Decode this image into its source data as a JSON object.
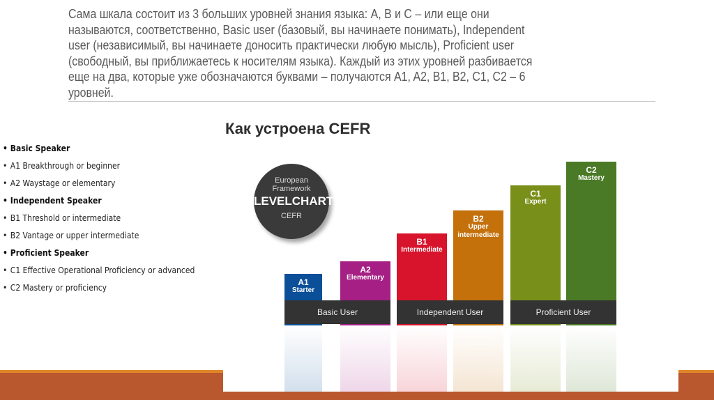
{
  "paragraph": {
    "lines": [
      "Сама шкала состоит из 3 больших уровней знания языка: А, В и С – или еще они",
      "называются, соответственно, Basic user (базовый, вы начинаете понимать), Independent",
      "user (независимый, вы начинаете доносить практически любую мысль), Proficient user",
      "(свободный, вы приближаетесь к носителям языка). Каждый из этих уровней разбивается",
      "еще на два, которые уже обозначаются буквами – получаются A1, A2, B1, B2, C1, C2 – 6",
      "уровней."
    ]
  },
  "list": [
    {
      "text": "Basic Speaker",
      "bold": true
    },
    {
      "text": "A1 Breakthrough or beginner"
    },
    {
      "text": "A2 Waystage or elementary"
    },
    {
      "text": "Independent Speaker",
      "bold": true
    },
    {
      "text": "B1 Threshold or intermediate"
    },
    {
      "text": "B2 Vantage or upper intermediate"
    },
    {
      "text": "Proficient Speaker",
      "bold": true
    },
    {
      "text": "C1 Effective Operational Proficiency or advanced"
    },
    {
      "text": "C2 Mastery or proficiency"
    }
  ],
  "figure": {
    "title": "Как устроена CEFR",
    "badge": {
      "line1": "European",
      "line2": "Framework",
      "line3": "LEVELCHART",
      "line4": "CEFR"
    },
    "levels": [
      {
        "code": "A1",
        "name": "Starter",
        "color": "#0a4f98",
        "height": 1
      },
      {
        "code": "A2",
        "name": "Elementary",
        "color": "#a51f85",
        "height": 2
      },
      {
        "code": "B1",
        "name": "Intermediate",
        "color": "#d8142c",
        "height": 3
      },
      {
        "code": "B2",
        "name": "Upper intermediate",
        "color": "#c4700b",
        "height": 4
      },
      {
        "code": "C1",
        "name": "Expert",
        "color": "#78901a",
        "height": 5
      },
      {
        "code": "C2",
        "name": "Mastery",
        "color": "#4a7a25",
        "height": 6
      }
    ],
    "groups": [
      "Basic User",
      "Independent User",
      "Proficient User"
    ]
  },
  "colors": {
    "band_orange": "#e0862a",
    "band_rust": "#b9582e"
  }
}
